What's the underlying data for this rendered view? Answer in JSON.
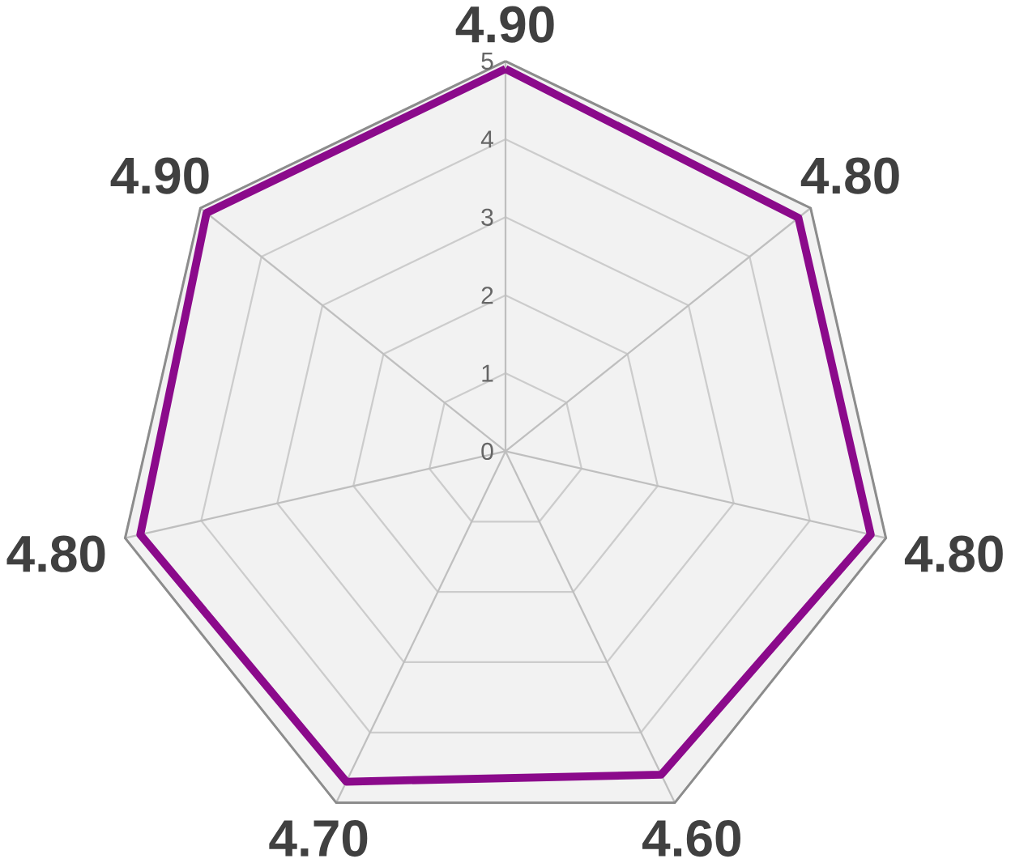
{
  "chart_data": {
    "type": "radar",
    "categories": [
      "4.90",
      "4.80",
      "4.80",
      "4.60",
      "4.70",
      "4.80",
      "4.90"
    ],
    "series": [
      {
        "color": "#8b0a8b",
        "values": [
          4.9,
          4.8,
          4.8,
          4.6,
          4.7,
          4.8,
          4.9
        ]
      }
    ],
    "ylim": [
      0,
      5
    ],
    "yticks": [
      {
        "value": 0,
        "label": "0"
      },
      {
        "value": 1,
        "label": "1"
      },
      {
        "value": 2,
        "label": "2"
      },
      {
        "value": 3,
        "label": "3"
      },
      {
        "value": 4,
        "label": "4"
      },
      {
        "value": 5,
        "label": "5"
      }
    ],
    "grid": true
  }
}
